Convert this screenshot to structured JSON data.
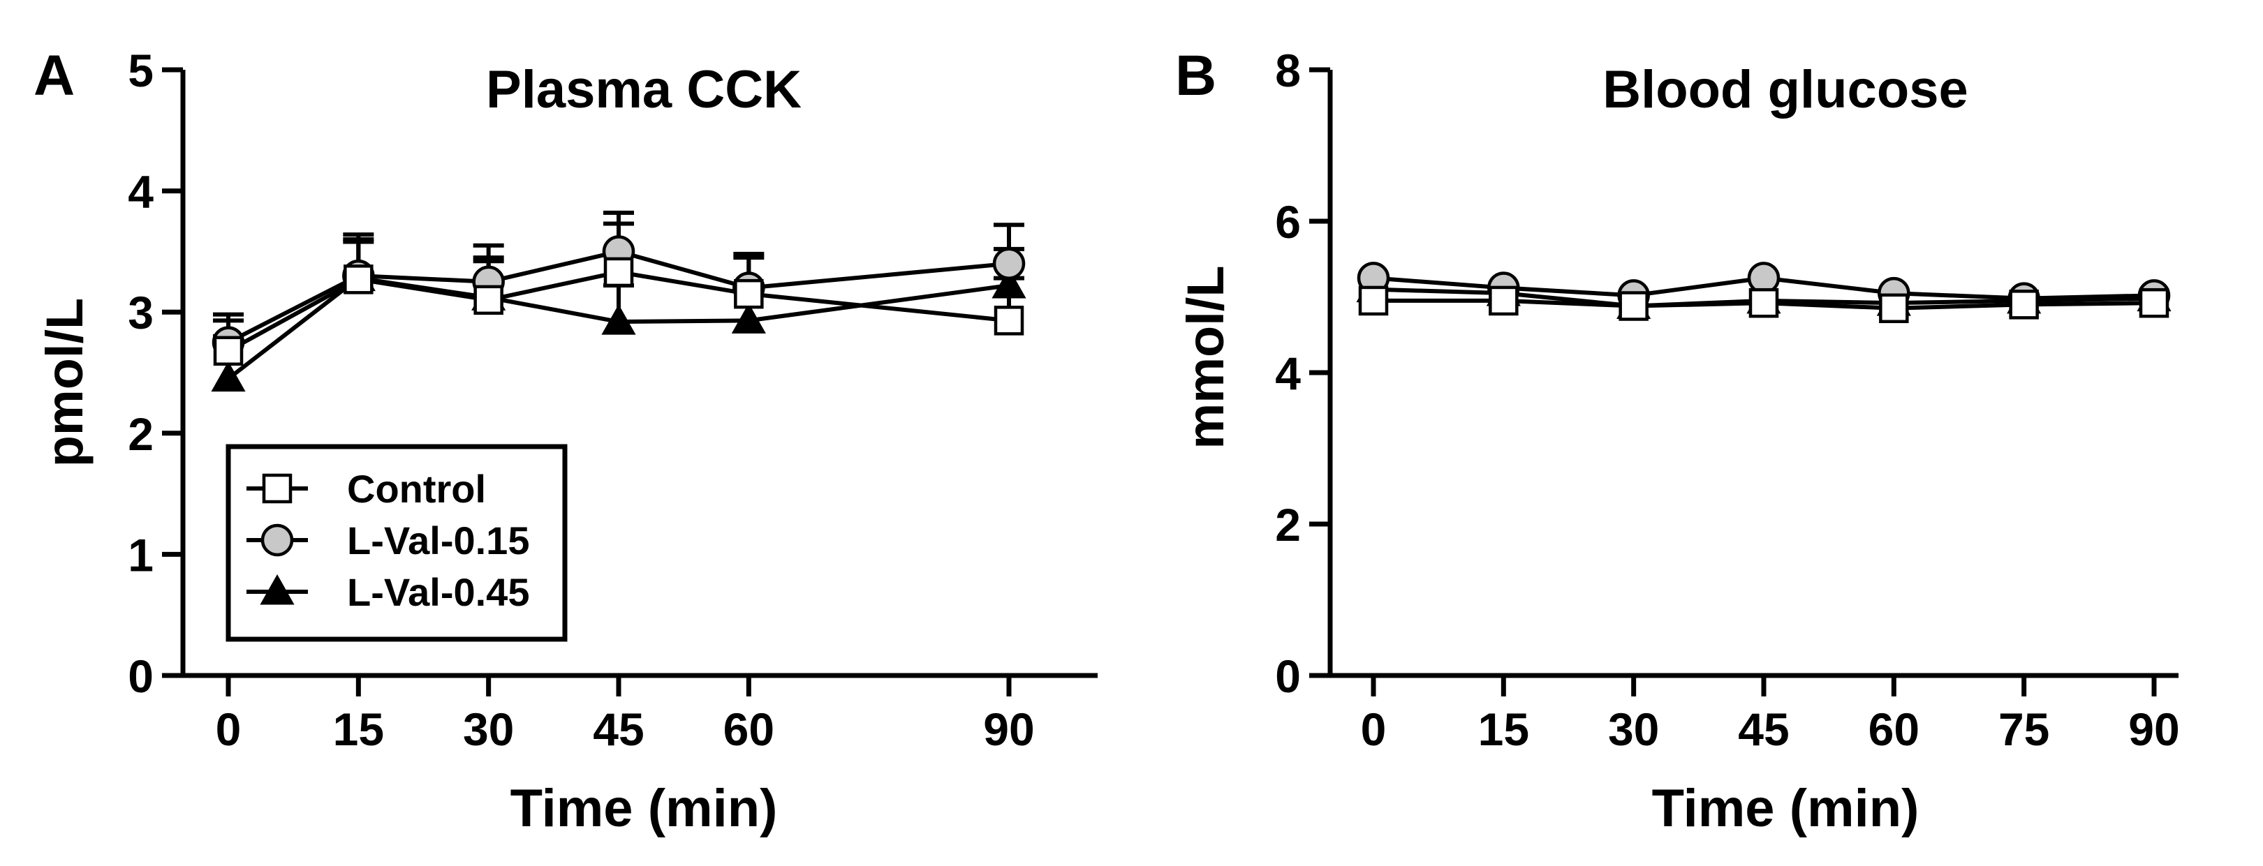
{
  "chart_data": [
    {
      "panel_label": "A",
      "type": "line",
      "title": "Plasma CCK",
      "xlabel": "Time (min)",
      "ylabel": "pmol/L",
      "xlim": [
        0,
        90
      ],
      "ylim": [
        0,
        5
      ],
      "x_ticks": [
        "0",
        "15",
        "30",
        "45",
        "60",
        "90"
      ],
      "y_ticks": [
        "0",
        "1",
        "2",
        "3",
        "4",
        "5"
      ],
      "grid": false,
      "legend": {
        "position": "bottom-left",
        "boxed": true
      },
      "x": [
        0,
        15,
        30,
        45,
        60,
        90
      ],
      "series": [
        {
          "name": "L-Val-0.45",
          "marker": "triangle",
          "fill": "#000000",
          "values": [
            2.45,
            3.28,
            3.12,
            2.92,
            2.93,
            3.22
          ],
          "error": [
            0.35,
            0.3,
            0.3,
            0.3,
            0.3,
            0.3
          ]
        },
        {
          "name": "L-Val-0.15",
          "marker": "circle",
          "fill": "#c8c8c8",
          "values": [
            2.75,
            3.3,
            3.25,
            3.5,
            3.2,
            3.4
          ],
          "error": [
            0.18,
            0.3,
            0.3,
            0.32,
            0.28,
            0.32
          ]
        },
        {
          "name": "Control",
          "marker": "square",
          "fill": "#ffffff",
          "values": [
            2.68,
            3.27,
            3.1,
            3.33,
            3.15,
            2.93
          ],
          "error": [
            0.3,
            0.37,
            0.35,
            0.4,
            0.3,
            0.35
          ]
        }
      ]
    },
    {
      "panel_label": "B",
      "type": "line",
      "title": "Blood glucose",
      "xlabel": "Time (min)",
      "ylabel": "mmol/L",
      "xlim": [
        0,
        90
      ],
      "ylim": [
        0,
        8
      ],
      "x_ticks": [
        "0",
        "15",
        "30",
        "45",
        "60",
        "75",
        "90"
      ],
      "y_ticks": [
        "0",
        "2",
        "4",
        "6",
        "8"
      ],
      "grid": false,
      "x": [
        0,
        15,
        30,
        45,
        60,
        75,
        90
      ],
      "series": [
        {
          "name": "L-Val-0.45",
          "marker": "triangle",
          "fill": "#000000",
          "values": [
            5.1,
            5.05,
            4.88,
            4.95,
            4.92,
            4.95,
            4.98
          ]
        },
        {
          "name": "L-Val-0.15",
          "marker": "circle",
          "fill": "#c8c8c8",
          "values": [
            5.25,
            5.12,
            5.02,
            5.25,
            5.05,
            4.98,
            5.02
          ]
        },
        {
          "name": "Control",
          "marker": "square",
          "fill": "#ffffff",
          "values": [
            4.95,
            4.95,
            4.88,
            4.92,
            4.85,
            4.9,
            4.92
          ]
        }
      ]
    }
  ]
}
